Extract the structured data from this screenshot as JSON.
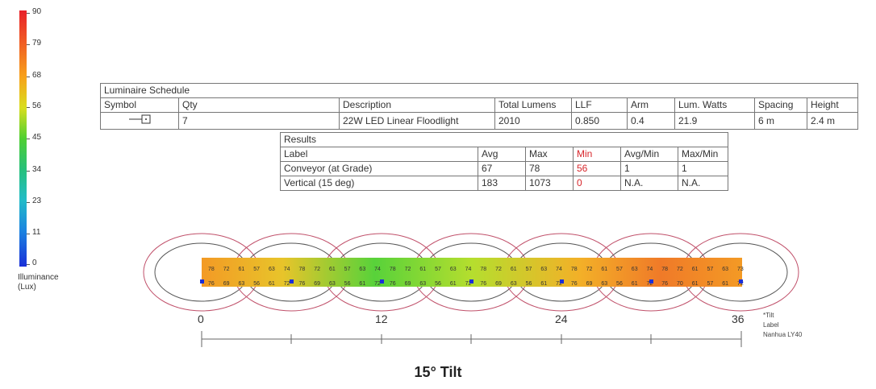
{
  "legend": {
    "ticks": [
      "90",
      "79",
      "68",
      "56",
      "45",
      "34",
      "23",
      "11",
      "0"
    ],
    "title_line1": "Illuminance",
    "title_line2": "(Lux)"
  },
  "luminaire_schedule": {
    "title": "Luminaire Schedule",
    "headers": [
      "Symbol",
      "Qty",
      "Description",
      "Total Lumens",
      "LLF",
      "Arm",
      "Lum. Watts",
      "Spacing",
      "Height"
    ],
    "row": {
      "symbol_icon": "luminaire-symbol-icon",
      "qty": "7",
      "description": "22W LED Linear Floodlight",
      "total_lumens": "2010",
      "llf": "0.850",
      "arm": "0.4",
      "lum_watts": "21.9",
      "spacing": "6 m",
      "height": "2.4 m"
    }
  },
  "results": {
    "title": "Results",
    "headers": [
      "Label",
      "Avg",
      "Max",
      "Min",
      "Avg/Min",
      "Max/Min"
    ],
    "rows": [
      [
        "Conveyor (at Grade)",
        "67",
        "78",
        "56",
        "1",
        "1"
      ],
      [
        "Vertical (15 deg)",
        "183",
        "1073",
        "0",
        "N.A.",
        "N.A."
      ]
    ],
    "min_color": "#d7262b"
  },
  "grid_values": {
    "top_row": [
      "78",
      "72",
      "61",
      "57",
      "63",
      "74",
      "78",
      "72",
      "61",
      "57",
      "63",
      "74",
      "78",
      "72",
      "61",
      "57",
      "63",
      "74",
      "78",
      "72",
      "61",
      "57",
      "63",
      "74",
      "78",
      "72",
      "61",
      "57",
      "63",
      "74",
      "78",
      "72",
      "61",
      "57",
      "63",
      "73"
    ],
    "bottom_row": [
      "76",
      "69",
      "63",
      "56",
      "61",
      "72",
      "76",
      "69",
      "63",
      "56",
      "61",
      "72",
      "76",
      "69",
      "63",
      "56",
      "61",
      "72",
      "76",
      "69",
      "63",
      "56",
      "61",
      "72",
      "76",
      "69",
      "63",
      "56",
      "61",
      "72",
      "76",
      "70",
      "61",
      "57",
      "61",
      "72"
    ]
  },
  "scale": {
    "labels": [
      "0",
      "12",
      "24",
      "36"
    ]
  },
  "notes": {
    "line1": "*Tilt",
    "line2": "Label",
    "line3": "Nanhua LY40"
  },
  "caption": "15° Tilt"
}
